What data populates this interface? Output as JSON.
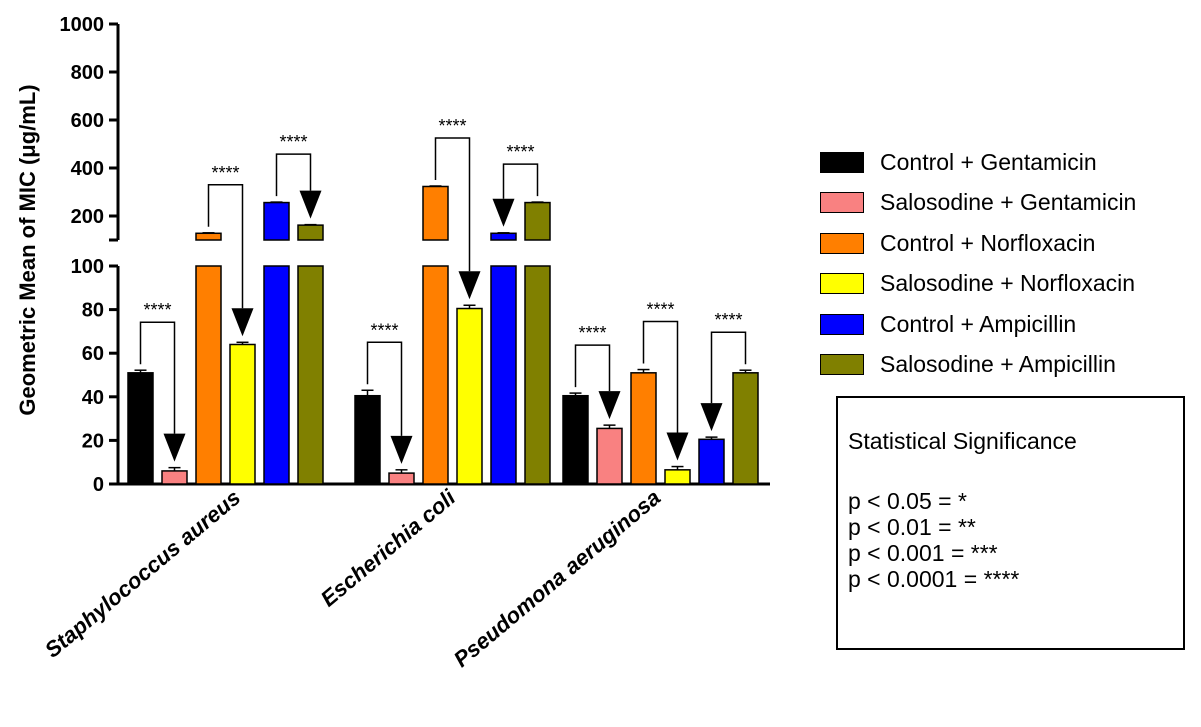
{
  "chart_data": {
    "type": "bar",
    "ylabel": "Geometric Mean of MIC (μg/mL)",
    "xlabel": "",
    "y_axis_break": [
      100,
      100
    ],
    "ylim_lower": [
      0,
      100
    ],
    "ylim_upper": [
      100,
      1000
    ],
    "yticks_lower": [
      "0",
      "20",
      "40",
      "60",
      "80",
      "100"
    ],
    "yticks_upper": [
      "200",
      "400",
      "600",
      "800",
      "1000"
    ],
    "categories": [
      "Staphylococcus aureus",
      "Escherichia coli",
      "Pseudomona aeruginosa"
    ],
    "series": [
      {
        "name": "Control + Gentamicin",
        "color": "#000000",
        "values": [
          51,
          40.5,
          40.5
        ],
        "errors": [
          1.2,
          2.5,
          1.2
        ]
      },
      {
        "name": "Salosodine + Gentamicin",
        "color": "#F98181",
        "values": [
          6,
          5,
          25.5
        ],
        "errors": [
          1.5,
          1.5,
          1.5
        ]
      },
      {
        "name": "Control + Norfloxacin",
        "color": "#FF7F00",
        "values": [
          128,
          323,
          51
        ],
        "errors": [
          2,
          2,
          1.5
        ]
      },
      {
        "name": "Salosodine + Norfloxacin",
        "color": "#FFFF00",
        "values": [
          64,
          80.5,
          6.5
        ],
        "errors": [
          1,
          1.5,
          1.5
        ]
      },
      {
        "name": "Control + Ampicillin",
        "color": "#0000FF",
        "values": [
          256,
          128,
          20.5
        ],
        "errors": [
          2,
          2,
          1
        ]
      },
      {
        "name": "Salosodine + Ampicillin",
        "color": "#808000",
        "values": [
          162,
          256,
          51
        ],
        "errors": [
          2,
          2,
          1.2
        ]
      }
    ],
    "significance_brackets": [
      {
        "category": 0,
        "from": 0,
        "to": 1,
        "label": "****"
      },
      {
        "category": 0,
        "from": 2,
        "to": 3,
        "label": "****"
      },
      {
        "category": 0,
        "from": 4,
        "to": 5,
        "label": "****"
      },
      {
        "category": 1,
        "from": 0,
        "to": 1,
        "label": "****"
      },
      {
        "category": 1,
        "from": 2,
        "to": 3,
        "label": "****"
      },
      {
        "category": 1,
        "from": 5,
        "to": 4,
        "label": "****"
      },
      {
        "category": 2,
        "from": 0,
        "to": 1,
        "label": "****"
      },
      {
        "category": 2,
        "from": 2,
        "to": 3,
        "label": "****"
      },
      {
        "category": 2,
        "from": 5,
        "to": 4,
        "label": "****"
      }
    ],
    "legend_position": "right",
    "grid": false
  },
  "stats_box": {
    "title": "Statistical Significance",
    "lines": [
      "p < 0.05 = *",
      "p < 0.01 = **",
      "p < 0.001 = ***",
      "p < 0.0001 = ****"
    ]
  }
}
